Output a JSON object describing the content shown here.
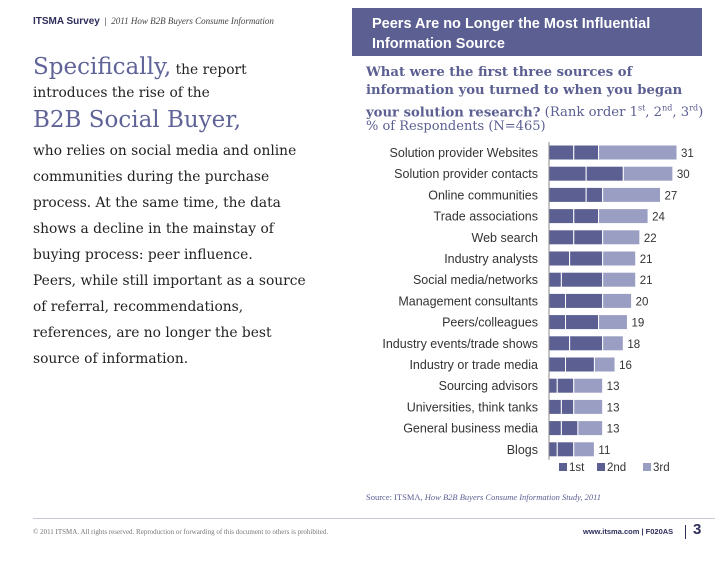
{
  "header": {
    "brand": "ITSMA Survey",
    "separator": "|",
    "subtitle": "2011 How B2B  Buyers Consume Information",
    "title_line1": "Peers Are no Longer the  Most Influential",
    "title_line2": "Information Source"
  },
  "left_text": {
    "l1_big": "Specifically,",
    "l1_rest": " the report",
    "l2": "introduces the rise of the",
    "l3_big": "B2B Social Buyer",
    "l3_rest": ",",
    "lines": [
      "who relies on social media and online",
      "communities  during the purchase",
      "process.  At the same time, the data",
      "shows a decline in the mainstay of",
      "buying process: peer influence.",
      "Peers, while still important as a source",
      "of referral, recommendations,",
      "references, are  no longer the best",
      "source of  information."
    ]
  },
  "question": {
    "line1": "What were the first three sources of",
    "line2": "information you turned to when you began",
    "line3a": "your solution research?",
    "line3b": " (Rank order 1",
    "sup1": "st",
    "sep1": ", 2",
    "sup2": "nd",
    "sep2": ", 3",
    "sup3": "rd",
    "close": ")",
    "respondents": "% of Respondents (N=465)"
  },
  "chart_data": {
    "type": "bar",
    "orientation": "horizontal",
    "stacked": true,
    "title": "What were the first three sources of information you turned to when you began your solution research?",
    "xlabel": "% of Respondents (N=465)",
    "categories": [
      "Solution provider Websites",
      "Solution provider contacts",
      "Online communities",
      "Trade associations",
      "Web search",
      "Industry analysts",
      "Social media/networks",
      "Management consultants",
      "Peers/colleagues",
      "Industry events/trade shows",
      "Industry or trade media",
      "Sourcing advisors",
      "Universities, think tanks",
      "General business media",
      "Blogs"
    ],
    "series": [
      {
        "name": "1st",
        "color": "#5b5f92",
        "values": [
          6,
          9,
          9,
          6,
          6,
          5,
          3,
          4,
          4,
          5,
          4,
          2,
          3,
          3,
          2
        ]
      },
      {
        "name": "2nd",
        "color": "#5b5f92",
        "values": [
          6,
          9,
          4,
          6,
          7,
          8,
          10,
          9,
          8,
          8,
          7,
          4,
          3,
          4,
          4
        ]
      },
      {
        "name": "3rd",
        "color": "#9b9ec3",
        "values": [
          19,
          12,
          14,
          12,
          9,
          8,
          8,
          7,
          7,
          5,
          5,
          7,
          7,
          6,
          5
        ]
      }
    ],
    "totals": [
      31,
      30,
      27,
      24,
      22,
      21,
      21,
      20,
      19,
      18,
      16,
      13,
      13,
      13,
      11
    ],
    "xlim": [
      0,
      31
    ],
    "legend": [
      "1st",
      "2nd",
      "3rd"
    ],
    "legend_position": "bottom"
  },
  "source": {
    "prefix": "Source: ITSMA, ",
    "italic": "How B2B Buyers Consume Information Study, 2011"
  },
  "footer": {
    "copyright": "© 2011 ITSMA. All rights reserved. Reproduction or forwarding of this document to others is prohibited.",
    "site": "www.itsma.com | F020AS",
    "page": "3"
  }
}
